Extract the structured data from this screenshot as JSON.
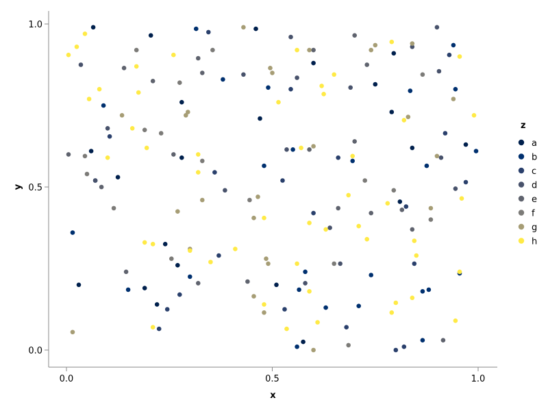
{
  "chart_data": {
    "type": "scatter",
    "title": "",
    "xlabel": "x",
    "ylabel": "y",
    "xlim": [
      -0.04,
      1.04
    ],
    "ylim": [
      -0.05,
      1.04
    ],
    "xticks": [
      0.0,
      0.5,
      1.0
    ],
    "yticks": [
      0.0,
      0.5,
      1.0
    ],
    "xtick_labels": [
      "0.0",
      "0.5",
      "1.0"
    ],
    "ytick_labels": [
      "0.0",
      "0.5",
      "1.0"
    ],
    "grid": false,
    "legend": {
      "title": "z",
      "placement": "right"
    },
    "series": [
      {
        "name": "a",
        "color": "#00204d",
        "points": [
          [
            0.065,
            0.99
          ],
          [
            0.205,
            0.965
          ],
          [
            0.46,
            0.985
          ],
          [
            0.6,
            0.88
          ],
          [
            0.75,
            0.815
          ],
          [
            0.795,
            0.91
          ],
          [
            0.79,
            0.73
          ],
          [
            0.28,
            0.76
          ],
          [
            0.06,
            0.61
          ],
          [
            0.125,
            0.53
          ],
          [
            0.28,
            0.59
          ],
          [
            0.47,
            0.71
          ],
          [
            0.84,
            0.62
          ],
          [
            0.97,
            0.63
          ],
          [
            0.81,
            0.455
          ],
          [
            0.24,
            0.325
          ],
          [
            0.27,
            0.26
          ],
          [
            0.03,
            0.2
          ],
          [
            0.19,
            0.19
          ],
          [
            0.22,
            0.14
          ],
          [
            0.51,
            0.2
          ],
          [
            0.575,
            0.025
          ]
        ]
      },
      {
        "name": "b",
        "color": "#00306f",
        "points": [
          [
            0.315,
            0.985
          ],
          [
            0.49,
            0.805
          ],
          [
            0.38,
            0.83
          ],
          [
            0.09,
            0.75
          ],
          [
            0.07,
            0.52
          ],
          [
            0.55,
            0.615
          ],
          [
            0.48,
            0.565
          ],
          [
            0.695,
            0.58
          ],
          [
            0.835,
            0.795
          ],
          [
            0.875,
            0.565
          ],
          [
            0.945,
            0.8
          ],
          [
            0.94,
            0.935
          ],
          [
            0.995,
            0.61
          ],
          [
            0.015,
            0.36
          ],
          [
            0.15,
            0.185
          ],
          [
            0.3,
            0.225
          ],
          [
            0.58,
            0.24
          ],
          [
            0.565,
            0.185
          ],
          [
            0.63,
            0.13
          ],
          [
            0.71,
            0.135
          ],
          [
            0.74,
            0.23
          ],
          [
            0.865,
            0.18
          ],
          [
            0.88,
            0.185
          ],
          [
            0.955,
            0.235
          ],
          [
            0.865,
            0.03
          ],
          [
            0.56,
            0.01
          ]
        ]
      },
      {
        "name": "c",
        "color": "#2a406c",
        "points": [
          [
            0.345,
            0.975
          ],
          [
            0.545,
            0.8
          ],
          [
            0.105,
            0.655
          ],
          [
            0.36,
            0.545
          ],
          [
            0.525,
            0.52
          ],
          [
            0.6,
            0.42
          ],
          [
            0.66,
            0.59
          ],
          [
            0.92,
            0.665
          ],
          [
            0.93,
            0.905
          ],
          [
            0.97,
            0.515
          ],
          [
            0.825,
            0.44
          ],
          [
            0.845,
            0.265
          ],
          [
            0.275,
            0.17
          ],
          [
            0.245,
            0.125
          ],
          [
            0.225,
            0.065
          ],
          [
            0.53,
            0.125
          ],
          [
            0.68,
            0.07
          ],
          [
            0.8,
            0.0
          ],
          [
            0.82,
            0.01
          ],
          [
            0.37,
            0.29
          ]
        ]
      },
      {
        "name": "d",
        "color": "#48526b",
        "points": [
          [
            0.035,
            0.875
          ],
          [
            0.545,
            0.96
          ],
          [
            0.43,
            0.845
          ],
          [
            0.56,
            0.835
          ],
          [
            0.69,
            0.805
          ],
          [
            0.9,
            0.99
          ],
          [
            0.84,
            0.93
          ],
          [
            0.905,
            0.855
          ],
          [
            0.91,
            0.59
          ],
          [
            0.1,
            0.68
          ],
          [
            0.535,
            0.615
          ],
          [
            0.385,
            0.49
          ],
          [
            0.665,
            0.265
          ],
          [
            0.64,
            0.375
          ],
          [
            0.58,
            0.205
          ],
          [
            0.07,
            0.52
          ],
          [
            0.945,
            0.495
          ]
        ]
      },
      {
        "name": "e",
        "color": "#5f636e",
        "points": [
          [
            0.7,
            0.965
          ],
          [
            0.73,
            0.875
          ],
          [
            0.6,
            0.92
          ],
          [
            0.14,
            0.865
          ],
          [
            0.21,
            0.825
          ],
          [
            0.32,
            0.895
          ],
          [
            0.33,
            0.85
          ],
          [
            0.005,
            0.6
          ],
          [
            0.26,
            0.6
          ],
          [
            0.59,
            0.615
          ],
          [
            0.7,
            0.64
          ],
          [
            0.84,
            0.37
          ],
          [
            0.815,
            0.43
          ],
          [
            0.66,
            0.435
          ],
          [
            0.74,
            0.42
          ],
          [
            0.145,
            0.24
          ],
          [
            0.44,
            0.21
          ],
          [
            0.32,
            0.205
          ],
          [
            0.915,
            0.03
          ],
          [
            0.085,
            0.5
          ]
        ]
      },
      {
        "name": "f",
        "color": "#7c7b78",
        "points": [
          [
            0.17,
            0.92
          ],
          [
            0.275,
            0.82
          ],
          [
            0.355,
            0.92
          ],
          [
            0.19,
            0.675
          ],
          [
            0.23,
            0.665
          ],
          [
            0.33,
            0.58
          ],
          [
            0.045,
            0.595
          ],
          [
            0.865,
            0.845
          ],
          [
            0.725,
            0.52
          ],
          [
            0.885,
            0.4
          ],
          [
            0.795,
            0.49
          ],
          [
            0.255,
            0.28
          ],
          [
            0.65,
            0.265
          ],
          [
            0.685,
            0.015
          ],
          [
            0.115,
            0.435
          ],
          [
            0.05,
            0.54
          ],
          [
            0.445,
            0.46
          ]
        ]
      },
      {
        "name": "g",
        "color": "#a69d75",
        "points": [
          [
            0.43,
            0.99
          ],
          [
            0.59,
            0.92
          ],
          [
            0.75,
            0.935
          ],
          [
            0.84,
            0.94
          ],
          [
            0.5,
            0.85
          ],
          [
            0.495,
            0.865
          ],
          [
            0.74,
            0.92
          ],
          [
            0.29,
            0.72
          ],
          [
            0.135,
            0.72
          ],
          [
            0.295,
            0.73
          ],
          [
            0.6,
            0.625
          ],
          [
            0.27,
            0.425
          ],
          [
            0.33,
            0.46
          ],
          [
            0.455,
            0.405
          ],
          [
            0.465,
            0.47
          ],
          [
            0.49,
            0.265
          ],
          [
            0.485,
            0.28
          ],
          [
            0.455,
            0.165
          ],
          [
            0.48,
            0.115
          ],
          [
            0.6,
            0.0
          ],
          [
            0.83,
            0.715
          ],
          [
            0.885,
            0.435
          ],
          [
            0.9,
            0.595
          ],
          [
            0.94,
            0.77
          ],
          [
            0.015,
            0.055
          ],
          [
            0.3,
            0.31
          ]
        ]
      },
      {
        "name": "h",
        "color": "#ffea46",
        "points": [
          [
            0.005,
            0.905
          ],
          [
            0.025,
            0.93
          ],
          [
            0.045,
            0.97
          ],
          [
            0.17,
            0.87
          ],
          [
            0.26,
            0.905
          ],
          [
            0.08,
            0.8
          ],
          [
            0.055,
            0.77
          ],
          [
            0.175,
            0.79
          ],
          [
            0.16,
            0.68
          ],
          [
            0.195,
            0.62
          ],
          [
            0.1,
            0.59
          ],
          [
            0.32,
            0.6
          ],
          [
            0.32,
            0.545
          ],
          [
            0.19,
            0.33
          ],
          [
            0.21,
            0.325
          ],
          [
            0.3,
            0.305
          ],
          [
            0.35,
            0.27
          ],
          [
            0.41,
            0.31
          ],
          [
            0.515,
            0.76
          ],
          [
            0.56,
            0.92
          ],
          [
            0.62,
            0.81
          ],
          [
            0.625,
            0.785
          ],
          [
            0.65,
            0.845
          ],
          [
            0.685,
            0.475
          ],
          [
            0.71,
            0.38
          ],
          [
            0.73,
            0.34
          ],
          [
            0.78,
            0.45
          ],
          [
            0.57,
            0.62
          ],
          [
            0.48,
            0.405
          ],
          [
            0.56,
            0.265
          ],
          [
            0.59,
            0.39
          ],
          [
            0.63,
            0.37
          ],
          [
            0.48,
            0.14
          ],
          [
            0.535,
            0.065
          ],
          [
            0.59,
            0.18
          ],
          [
            0.61,
            0.085
          ],
          [
            0.79,
            0.115
          ],
          [
            0.8,
            0.145
          ],
          [
            0.84,
            0.16
          ],
          [
            0.845,
            0.335
          ],
          [
            0.85,
            0.29
          ],
          [
            0.82,
            0.705
          ],
          [
            0.79,
            0.945
          ],
          [
            0.955,
            0.9
          ],
          [
            0.96,
            0.465
          ],
          [
            0.99,
            0.72
          ],
          [
            0.945,
            0.09
          ],
          [
            0.955,
            0.24
          ],
          [
            0.21,
            0.07
          ],
          [
            0.695,
            0.595
          ]
        ]
      }
    ]
  }
}
